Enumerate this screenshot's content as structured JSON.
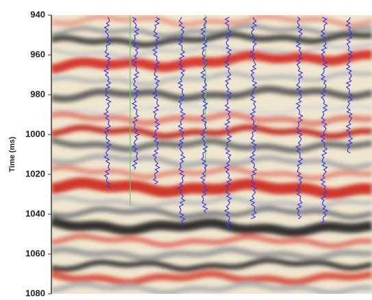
{
  "chart_data": {
    "type": "seismic",
    "y_label": "Time (ms)",
    "ylim": [
      940,
      1080
    ],
    "yticks": [
      940,
      960,
      980,
      1000,
      1020,
      1040,
      1060,
      1080
    ]
  }
}
